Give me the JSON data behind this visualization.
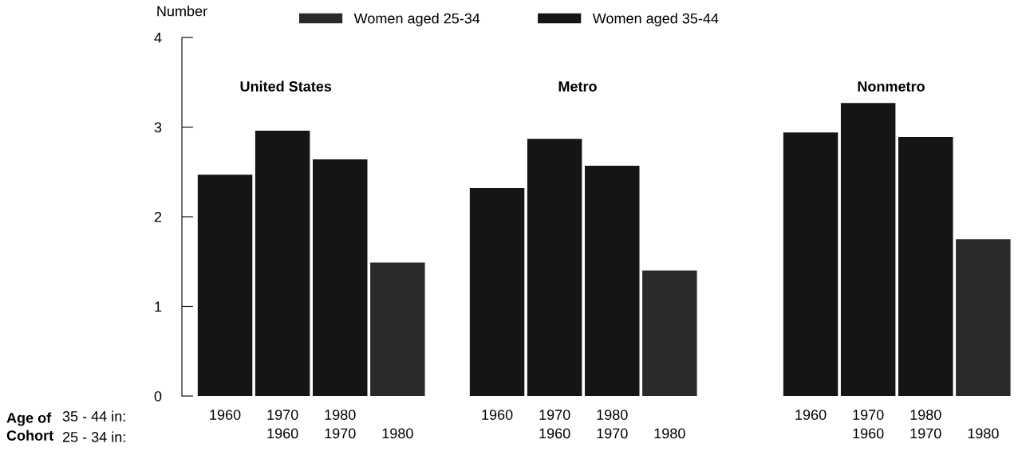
{
  "chart_data": [
    {
      "type": "bar",
      "title": "United States",
      "ylabel": "Number",
      "categories": [
        "1960\n",
        "1970\n1960",
        "1980\n1970",
        "\n1980"
      ],
      "series": [
        {
          "name": "Women aged 25-34",
          "color": "#2a2a2a",
          "values": [
            null,
            null,
            null,
            1.49
          ]
        },
        {
          "name": "Women aged 35-44",
          "color": "#151515",
          "values": [
            2.47,
            2.96,
            2.64,
            null
          ]
        }
      ],
      "ylim": [
        0,
        4
      ],
      "yticks": [
        0,
        1,
        2,
        3,
        4
      ],
      "legend": "top",
      "grid": false,
      "annotations": [
        "Age of\nCohort",
        "35 - 44 in:",
        "25 - 34 in:"
      ]
    },
    {
      "type": "bar",
      "title": "Metro",
      "categories": [
        "1960\n",
        "1970\n1960",
        "1980\n1970",
        "\n1980"
      ],
      "series": [
        {
          "color": "#2a2a2a",
          "values": [
            null,
            null,
            null,
            1.4
          ]
        },
        {
          "color": "#151515",
          "values": [
            2.32,
            2.87,
            2.57,
            null
          ]
        }
      ],
      "ylim": [
        0,
        4
      ],
      "tick_labels": "x",
      "grid": false
    },
    {
      "type": "bar",
      "title": "Nonmetro",
      "categories": [
        "1960\n",
        "1970\n1960",
        "1980\n1970",
        "\n1980"
      ],
      "series": [
        {
          "color": "#2a2a2a",
          "values": [
            null,
            null,
            null,
            1.75
          ]
        },
        {
          "color": "#151515",
          "values": [
            2.94,
            3.27,
            2.89,
            null
          ]
        }
      ],
      "ylim": [
        0,
        4
      ],
      "tick_labels": "x",
      "grid": false
    }
  ]
}
